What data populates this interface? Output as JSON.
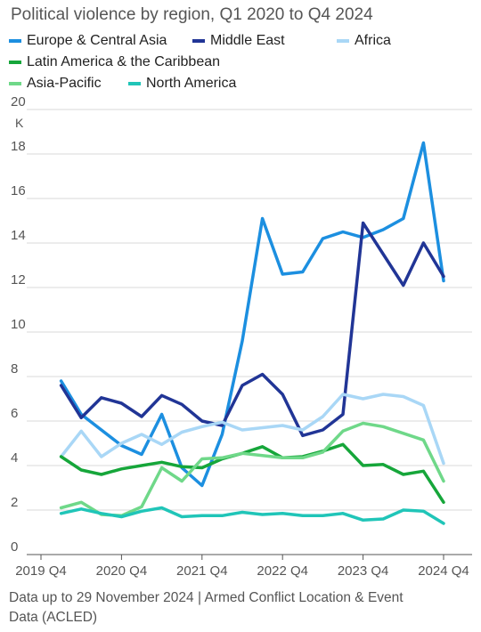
{
  "chart_data": {
    "type": "line",
    "title": "Political violence by region, Q1 2020 to Q4 2024",
    "y_unit": "K",
    "ylim": [
      0,
      20
    ],
    "y_ticks": [
      0,
      2,
      4,
      6,
      8,
      10,
      12,
      14,
      16,
      18,
      20
    ],
    "x_ticks": [
      "2019 Q4",
      "2020 Q4",
      "2021 Q4",
      "2022 Q4",
      "2023 Q4",
      "2024 Q4"
    ],
    "x": [
      "2020 Q1",
      "2020 Q2",
      "2020 Q3",
      "2020 Q4",
      "2021 Q1",
      "2021 Q2",
      "2021 Q3",
      "2021 Q4",
      "2022 Q1",
      "2022 Q2",
      "2022 Q3",
      "2022 Q4",
      "2023 Q1",
      "2023 Q2",
      "2023 Q3",
      "2023 Q4",
      "2024 Q1",
      "2024 Q2",
      "2024 Q3",
      "2024 Q4"
    ],
    "grid": "horizontal",
    "legend": "top",
    "series": [
      {
        "name": "Europe & Central Asia",
        "color": "#1c8fe0",
        "values": [
          7.8,
          6.3,
          5.6,
          4.9,
          4.5,
          6.3,
          3.9,
          3.1,
          5.4,
          9.6,
          15.1,
          12.6,
          12.7,
          14.2,
          14.5,
          14.25,
          14.6,
          15.1,
          18.5,
          12.3
        ]
      },
      {
        "name": "Middle East",
        "color": "#213596",
        "values": [
          7.6,
          6.15,
          7.05,
          6.8,
          6.2,
          7.15,
          6.75,
          6.0,
          5.8,
          7.6,
          8.1,
          7.2,
          5.35,
          5.6,
          6.3,
          14.9,
          13.5,
          12.1,
          14.0,
          12.5
        ]
      },
      {
        "name": "Africa",
        "color": "#a9d7f6",
        "values": [
          4.4,
          5.55,
          4.4,
          5.0,
          5.4,
          4.95,
          5.5,
          5.75,
          5.95,
          5.6,
          5.7,
          5.8,
          5.6,
          6.2,
          7.2,
          7.0,
          7.2,
          7.1,
          6.7,
          4.1
        ]
      },
      {
        "name": "Latin America & the Caribbean",
        "color": "#16a63a",
        "values": [
          4.4,
          3.8,
          3.6,
          3.85,
          4.0,
          4.15,
          3.95,
          3.9,
          4.3,
          4.55,
          4.85,
          4.35,
          4.4,
          4.65,
          4.95,
          4.0,
          4.05,
          3.6,
          3.75,
          2.35
        ]
      },
      {
        "name": "Asia-Pacific",
        "color": "#6fd889",
        "values": [
          2.1,
          2.35,
          1.8,
          1.75,
          2.15,
          3.9,
          3.3,
          4.3,
          4.35,
          4.55,
          4.45,
          4.35,
          4.35,
          4.6,
          5.55,
          5.9,
          5.75,
          5.45,
          5.15,
          3.3
        ]
      },
      {
        "name": "North America",
        "color": "#20c5b8",
        "values": [
          1.85,
          2.05,
          1.85,
          1.7,
          1.95,
          2.1,
          1.7,
          1.75,
          1.75,
          1.9,
          1.8,
          1.85,
          1.75,
          1.75,
          1.85,
          1.55,
          1.6,
          2.0,
          1.95,
          1.4
        ]
      }
    ]
  },
  "footer": {
    "source_line1": "Data up to 29 November 2024  | Armed Conflict Location & Event",
    "source_line2": "Data (ACLED)"
  }
}
